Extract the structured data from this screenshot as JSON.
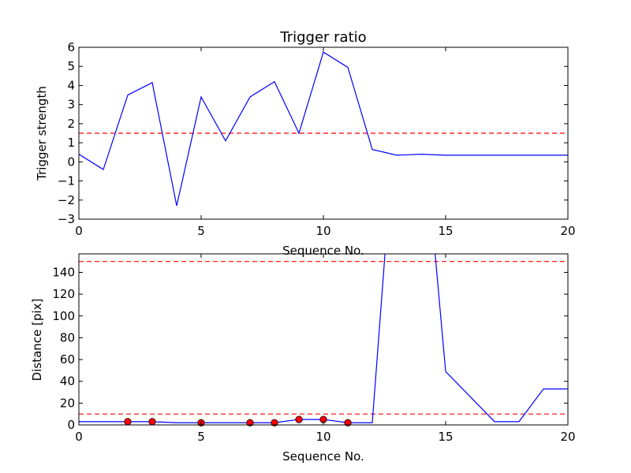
{
  "chart_data": [
    {
      "type": "line",
      "title": "Trigger ratio",
      "xlabel": "Sequence No.",
      "ylabel": "Trigger strength",
      "xlim": [
        0,
        20
      ],
      "ylim": [
        -3,
        6
      ],
      "xticks": [
        "0",
        "5",
        "10",
        "15",
        "20"
      ],
      "yticks": [
        "−3",
        "−2",
        "−1",
        "0",
        "1",
        "2",
        "3",
        "4",
        "5",
        "6"
      ],
      "series": [
        {
          "color": "#0000ff",
          "style": "solid",
          "x": [
            0,
            1,
            2,
            3,
            4,
            5,
            6,
            7,
            8,
            9,
            10,
            11,
            12,
            13,
            14,
            15,
            16,
            17,
            18,
            19,
            20
          ],
          "y": [
            0.4,
            -0.4,
            3.5,
            4.15,
            -2.3,
            3.4,
            1.1,
            3.4,
            4.2,
            1.5,
            5.75,
            4.95,
            0.65,
            0.35,
            0.4,
            0.35,
            0.35,
            0.35,
            0.35,
            0.35,
            0.35
          ]
        }
      ],
      "hlines": [
        {
          "y": 1.5,
          "color": "#ff0000",
          "style": "dashed"
        }
      ],
      "grid": false
    },
    {
      "type": "line",
      "title": "",
      "xlabel": "Sequence No.",
      "ylabel": "Distance [pix]",
      "xlim": [
        0,
        20
      ],
      "ylim": [
        0,
        157
      ],
      "xticks": [
        "0",
        "5",
        "10",
        "15",
        "20"
      ],
      "yticks": [
        "0",
        "20",
        "40",
        "60",
        "80",
        "100",
        "120",
        "140"
      ],
      "series": [
        {
          "color": "#0000ff",
          "style": "solid",
          "x": [
            0,
            1,
            2,
            3,
            4,
            5,
            6,
            7,
            8,
            9,
            10,
            11,
            12,
            13,
            14,
            15,
            16,
            17,
            18,
            19,
            20
          ],
          "y": [
            3,
            3,
            3,
            3,
            2,
            2,
            2,
            2,
            2,
            5,
            5,
            2,
            2,
            300,
            300,
            49,
            26,
            3,
            3,
            33,
            33
          ]
        }
      ],
      "markers": {
        "color": "#ff0000",
        "x": [
          2,
          3,
          5,
          7,
          8,
          9,
          10,
          11
        ],
        "y": [
          3,
          3,
          2,
          2,
          2,
          5,
          5,
          2
        ]
      },
      "hlines": [
        {
          "y": 150,
          "color": "#ff0000",
          "style": "dashed"
        },
        {
          "y": 10,
          "color": "#ff0000",
          "style": "dashed"
        }
      ],
      "grid": false
    }
  ]
}
